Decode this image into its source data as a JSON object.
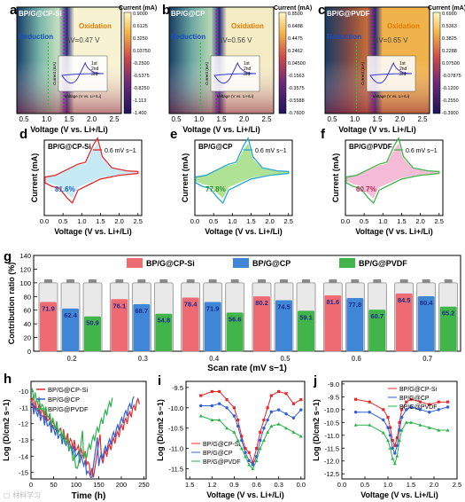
{
  "chart_data": [
    {
      "panel": "a",
      "type": "heatmap",
      "sample": "BP/G@CP-Si",
      "xlabel": "Voltage (V vs. Li+/Li)",
      "xticks": [
        "0.5",
        "1.0",
        "1.5",
        "2.0",
        "2.5"
      ],
      "colorbar_title": "Current (mA)",
      "colorbar_ticks": [
        "0.9000",
        "0.6125",
        "0.3250",
        "0.03750",
        "-0.2500",
        "-0.5375",
        "-0.8250",
        "-1.113",
        "-1.400"
      ],
      "annotations": [
        "Reduction",
        "Oxidation",
        "ΔV=0.47 V"
      ],
      "inset": {
        "xlabel": "Voltage (V vs. Li+/Li)",
        "ylabel": "Current (mA)",
        "legend": [
          "1st",
          "2nd",
          "3rd"
        ]
      }
    },
    {
      "panel": "b",
      "type": "heatmap",
      "sample": "BP/G@CP",
      "xlabel": "Voltage (V vs. Li+/Li)",
      "xticks": [
        "0.5",
        "1.0",
        "1.5",
        "2.0",
        "2.5"
      ],
      "colorbar_title": "Current (mA)",
      "colorbar_ticks": [
        "0.8500",
        "0.6488",
        "0.4475",
        "0.2462",
        "0.04500",
        "-0.1563",
        "-0.3575",
        "-0.5588",
        "-0.7600"
      ],
      "annotations": [
        "Reduction",
        "Oxidation",
        "ΔV=0.56 V"
      ],
      "inset": {
        "xlabel": "Voltage (V vs. Li+/Li)",
        "ylabel": "Current (mA)",
        "legend": [
          "1st",
          "2nd",
          "3rd"
        ]
      }
    },
    {
      "panel": "c",
      "type": "heatmap",
      "sample": "BP/G@PVDF",
      "xlabel": "Voltage (V vs. Li+/Li)",
      "xticks": [
        "0.5",
        "1.0",
        "1.5",
        "2.0",
        "2.5"
      ],
      "colorbar_title": "Current (mA)",
      "colorbar_ticks": [
        "0.6900",
        "0.5363",
        "0.3825",
        "0.2288",
        "0.07500",
        "-0.07875",
        "-0.1200",
        "-0.2550",
        "-0.3900"
      ],
      "annotations": [
        "Reduction",
        "Oxidation",
        "ΔV=0.65 V"
      ],
      "inset": {
        "xlabel": "Voltage (V vs. Li+/Li)",
        "ylabel": "Current (mA)",
        "legend": [
          "1st",
          "2nd",
          "3rd"
        ]
      }
    },
    {
      "panel": "d",
      "type": "line",
      "sample": "BP/G@CP-Si",
      "legend": "0.6 mV s−1",
      "color": "#e8282b",
      "fill": "#aee3f3",
      "percent": "81.6%",
      "xlabel": "Voltage (V vs. Li+/Li)",
      "ylabel": "Current (mA)",
      "xticks": [
        0.0,
        0.5,
        1.0,
        1.5,
        2.0,
        2.5
      ],
      "xlim": [
        0,
        2.6
      ],
      "ylim": [
        -1.4,
        1.0
      ]
    },
    {
      "panel": "e",
      "type": "line",
      "sample": "BP/G@CP",
      "legend": "0.6 mV s−1",
      "color": "#2aa6cf",
      "fill": "#8fd66a",
      "percent": "77.8%",
      "xlabel": "Voltage (V vs. Li+/Li)",
      "ylabel": "Current (mA)",
      "xticks": [
        0.0,
        0.5,
        1.0,
        1.5,
        2.0,
        2.5
      ],
      "xlim": [
        0,
        2.6
      ],
      "ylim": [
        -1.4,
        1.0
      ]
    },
    {
      "panel": "f",
      "type": "line",
      "sample": "BP/G@PVDF",
      "legend": "0.6 mV s−1",
      "color": "#3cb84a",
      "fill": "#f2a0c6",
      "percent": "60.7%",
      "xlabel": "Voltage (V vs. Li+/Li)",
      "ylabel": "Current (mA)",
      "xticks": [
        0.0,
        0.5,
        1.0,
        1.5,
        2.0,
        2.5
      ],
      "xlim": [
        0,
        2.6
      ],
      "ylim": [
        -1.4,
        1.0
      ]
    },
    {
      "panel": "g",
      "type": "bar",
      "xlabel": "Scan rate (mV s−1)",
      "ylabel": "Contribution ratio (%)",
      "ylim": [
        0,
        140
      ],
      "yticks": [
        0,
        20,
        40,
        60,
        80,
        100,
        120,
        140
      ],
      "categories": [
        "0.2",
        "0.3",
        "0.4",
        "0.5",
        "0.6",
        "0.7"
      ],
      "series": [
        {
          "name": "BP/G@CP-Si",
          "color": "#ef6b73",
          "values": [
            71.9,
            76.1,
            78.4,
            80.2,
            81.6,
            84.5
          ]
        },
        {
          "name": "BP/G@CP",
          "color": "#3f86d6",
          "values": [
            62.4,
            68.7,
            71.9,
            74.5,
            77.8,
            80.4
          ]
        },
        {
          "name": "BP/G@PVDF",
          "color": "#41b54a",
          "values": [
            50.9,
            54.8,
            56.6,
            59.1,
            60.7,
            65.2
          ]
        }
      ]
    },
    {
      "panel": "h",
      "type": "line",
      "xlabel": "Time (h)",
      "ylabel": "Log (D/cm2 s−1)",
      "xticks": [
        0,
        50,
        100,
        150,
        200,
        250
      ],
      "yticks": [
        -10,
        -11,
        -12,
        -13,
        -14,
        -15
      ],
      "xlim": [
        0,
        255
      ],
      "ylim": [
        -15.4,
        -9.4
      ],
      "series": [
        {
          "name": "BP/G@CP-Si",
          "color": "#e8282b"
        },
        {
          "name": "BP/G@CP",
          "color": "#2e5fd6"
        },
        {
          "name": "BP/G@PVDF",
          "color": "#2ab24a"
        }
      ]
    },
    {
      "panel": "i",
      "type": "line",
      "xlabel": "Voltage (V vs. Li+/Li)",
      "ylabel": "Log (D/cm2 s−1)",
      "xticks": [
        "1.5",
        "1.2",
        "0.9",
        "0.6",
        "0.3",
        "0.0"
      ],
      "yticks": [
        "-9.5",
        "-10.0",
        "-10.5",
        "-11.0",
        "-11.5"
      ],
      "xlim": [
        1.55,
        -0.05
      ],
      "ylim": [
        -11.75,
        -9.35
      ],
      "series": [
        {
          "name": "BP/G@CP-Si",
          "color": "#e8282b",
          "x": [
            1.35,
            1.2,
            1.1,
            1.0,
            0.9,
            0.85,
            0.8,
            0.75,
            0.7,
            0.65,
            0.6,
            0.55,
            0.5,
            0.45,
            0.4,
            0.3,
            0.2,
            0.1,
            0.0
          ],
          "y": [
            -9.7,
            -9.6,
            -9.6,
            -9.8,
            -10.0,
            -10.3,
            -10.7,
            -11.0,
            -11.1,
            -11.35,
            -11.0,
            -10.6,
            -10.3,
            -10.0,
            -9.7,
            -9.6,
            -9.65,
            -9.9,
            -9.8
          ]
        },
        {
          "name": "BP/G@CP",
          "color": "#2e5fd6",
          "x": [
            1.35,
            1.2,
            1.1,
            1.0,
            0.9,
            0.85,
            0.8,
            0.75,
            0.7,
            0.65,
            0.6,
            0.55,
            0.5,
            0.45,
            0.4,
            0.3,
            0.2,
            0.1,
            0.0
          ],
          "y": [
            -9.95,
            -9.95,
            -9.9,
            -10.0,
            -10.2,
            -10.45,
            -10.8,
            -11.1,
            -11.3,
            -11.4,
            -11.2,
            -10.8,
            -10.5,
            -10.3,
            -10.1,
            -10.05,
            -10.15,
            -10.25,
            -10.05
          ]
        },
        {
          "name": "BP/G@PVDF",
          "color": "#2ab24a",
          "x": [
            1.35,
            1.2,
            1.1,
            1.0,
            0.9,
            0.85,
            0.8,
            0.75,
            0.7,
            0.65,
            0.6,
            0.55,
            0.5,
            0.45,
            0.4,
            0.3,
            0.2,
            0.1,
            0.0
          ],
          "y": [
            -10.2,
            -10.3,
            -10.3,
            -10.5,
            -10.6,
            -10.8,
            -11.0,
            -11.2,
            -11.4,
            -11.5,
            -11.3,
            -11.0,
            -10.8,
            -10.6,
            -10.45,
            -10.4,
            -10.5,
            -10.6,
            -10.7
          ]
        }
      ]
    },
    {
      "panel": "j",
      "type": "line",
      "xlabel": "Voltage (V vs. Li+/Li)",
      "ylabel": "Log (D/cm2 s−1)",
      "xticks": [
        "0.0",
        "0.5",
        "1.0",
        "1.5",
        "2.0",
        "2.5"
      ],
      "yticks": [
        "-9.0",
        "-9.5",
        "-10.0",
        "-10.5",
        "-11.0",
        "-11.5",
        "-12.0",
        "-12.5"
      ],
      "xlim": [
        0,
        2.5
      ],
      "ylim": [
        -12.7,
        -8.9
      ],
      "series": [
        {
          "name": "BP/G@CP-Si",
          "color": "#e8282b",
          "x": [
            0.3,
            0.6,
            0.9,
            1.0,
            1.05,
            1.1,
            1.15,
            1.2,
            1.25,
            1.3,
            1.4,
            1.5,
            1.7,
            1.9,
            2.1,
            2.3
          ],
          "y": [
            -9.6,
            -9.7,
            -10.0,
            -10.3,
            -10.7,
            -11.2,
            -11.4,
            -11.1,
            -10.5,
            -10.0,
            -9.7,
            -9.6,
            -9.7,
            -9.8,
            -9.7,
            -9.7
          ]
        },
        {
          "name": "BP/G@CP",
          "color": "#2e5fd6",
          "x": [
            0.3,
            0.6,
            0.9,
            1.0,
            1.05,
            1.1,
            1.15,
            1.2,
            1.25,
            1.3,
            1.4,
            1.5,
            1.7,
            1.9,
            2.1,
            2.3
          ],
          "y": [
            -10.1,
            -10.1,
            -10.4,
            -10.7,
            -11.0,
            -11.5,
            -11.7,
            -11.4,
            -10.8,
            -10.3,
            -10.0,
            -9.9,
            -10.0,
            -10.1,
            -10.0,
            -9.9
          ]
        },
        {
          "name": "BP/G@PVDF",
          "color": "#2ab24a",
          "x": [
            0.3,
            0.6,
            0.9,
            1.0,
            1.05,
            1.1,
            1.15,
            1.2,
            1.25,
            1.3,
            1.4,
            1.5,
            1.7,
            1.9,
            2.1,
            2.3
          ],
          "y": [
            -10.6,
            -10.6,
            -10.9,
            -11.2,
            -11.5,
            -11.9,
            -12.1,
            -11.8,
            -11.2,
            -10.8,
            -10.5,
            -10.5,
            -10.6,
            -10.7,
            -10.8,
            -10.8
          ]
        }
      ]
    }
  ]
}
